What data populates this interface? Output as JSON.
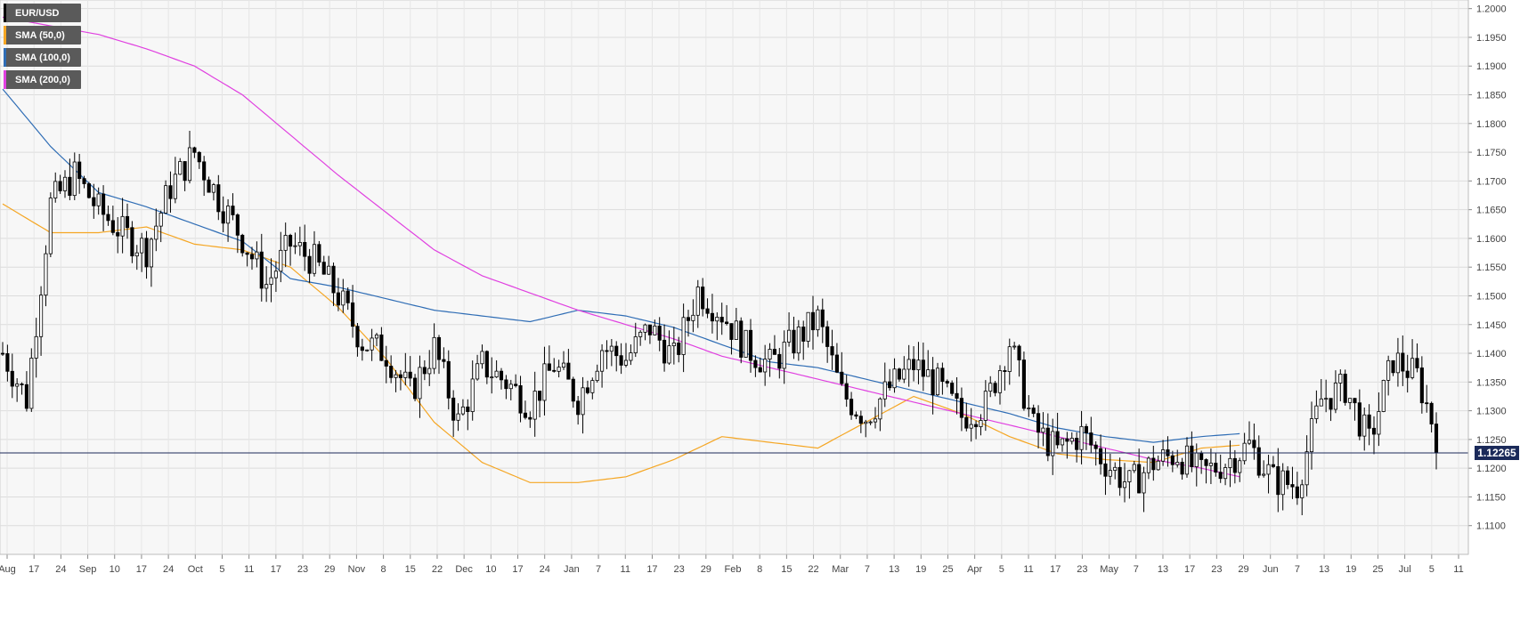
{
  "legend": [
    {
      "label": "EUR/USD",
      "color": "#000000"
    },
    {
      "label": "SMA (50,0)",
      "color": "#f5a623"
    },
    {
      "label": "SMA (100,0)",
      "color": "#2f6db5"
    },
    {
      "label": "SMA (200,0)",
      "color": "#e040e0"
    }
  ],
  "last_price_label": "1.12265",
  "chart_data": {
    "type": "candlestick",
    "title": "",
    "symbol": "EUR/USD",
    "ylim": [
      1.105,
      1.2015
    ],
    "y_ticks": [
      "1.1100",
      "1.1150",
      "1.1200",
      "1.1250",
      "1.1300",
      "1.1350",
      "1.1400",
      "1.1450",
      "1.1500",
      "1.1550",
      "1.1600",
      "1.1650",
      "1.1700",
      "1.1750",
      "1.1800",
      "1.1850",
      "1.1900",
      "1.1950",
      "1.2000"
    ],
    "x_ticks": [
      "Aug",
      "17",
      "24",
      "Sep",
      "10",
      "17",
      "24",
      "Oct",
      "5",
      "11",
      "17",
      "23",
      "29",
      "Nov",
      "8",
      "15",
      "22",
      "Dec",
      "10",
      "17",
      "24",
      "Jan",
      "7",
      "11",
      "17",
      "23",
      "29",
      "Feb",
      "8",
      "15",
      "22",
      "Mar",
      "7",
      "13",
      "19",
      "25",
      "Apr",
      "5",
      "11",
      "17",
      "23",
      "May",
      "7",
      "13",
      "17",
      "23",
      "29",
      "Jun",
      "7",
      "13",
      "19",
      "25",
      "Jul",
      "5",
      "11"
    ],
    "last_price": 1.12265,
    "grid": true,
    "sma_waypoints": {
      "SMA (50,0)": [
        [
          0,
          1.166
        ],
        [
          10,
          1.161
        ],
        [
          20,
          1.161
        ],
        [
          30,
          1.162
        ],
        [
          40,
          1.159
        ],
        [
          50,
          1.158
        ],
        [
          60,
          1.155
        ],
        [
          70,
          1.148
        ],
        [
          80,
          1.139
        ],
        [
          90,
          1.128
        ],
        [
          100,
          1.121
        ],
        [
          110,
          1.1175
        ],
        [
          120,
          1.1175
        ],
        [
          130,
          1.1185
        ],
        [
          140,
          1.1215
        ],
        [
          150,
          1.1255
        ],
        [
          160,
          1.1245
        ],
        [
          170,
          1.1235
        ],
        [
          180,
          1.128
        ],
        [
          190,
          1.1325
        ],
        [
          200,
          1.1295
        ],
        [
          210,
          1.1255
        ],
        [
          220,
          1.1225
        ],
        [
          230,
          1.1215
        ],
        [
          240,
          1.121
        ],
        [
          250,
          1.1235
        ],
        [
          258,
          1.124
        ]
      ],
      "SMA (100,0)": [
        [
          0,
          1.186
        ],
        [
          10,
          1.176
        ],
        [
          20,
          1.168
        ],
        [
          30,
          1.1655
        ],
        [
          40,
          1.1625
        ],
        [
          50,
          1.1595
        ],
        [
          60,
          1.153
        ],
        [
          70,
          1.1515
        ],
        [
          80,
          1.1495
        ],
        [
          90,
          1.1475
        ],
        [
          100,
          1.1465
        ],
        [
          110,
          1.1455
        ],
        [
          120,
          1.1475
        ],
        [
          130,
          1.1465
        ],
        [
          140,
          1.1445
        ],
        [
          150,
          1.1415
        ],
        [
          160,
          1.1385
        ],
        [
          170,
          1.1375
        ],
        [
          180,
          1.1355
        ],
        [
          190,
          1.1335
        ],
        [
          200,
          1.1315
        ],
        [
          210,
          1.1295
        ],
        [
          220,
          1.127
        ],
        [
          230,
          1.1255
        ],
        [
          240,
          1.1245
        ],
        [
          250,
          1.1255
        ],
        [
          258,
          1.126
        ]
      ],
      "SMA (200,0)": [
        [
          0,
          1.1985
        ],
        [
          10,
          1.197
        ],
        [
          20,
          1.1955
        ],
        [
          30,
          1.193
        ],
        [
          40,
          1.19
        ],
        [
          50,
          1.185
        ],
        [
          60,
          1.178
        ],
        [
          70,
          1.171
        ],
        [
          80,
          1.1645
        ],
        [
          90,
          1.158
        ],
        [
          100,
          1.1535
        ],
        [
          110,
          1.1505
        ],
        [
          120,
          1.1475
        ],
        [
          130,
          1.145
        ],
        [
          140,
          1.1425
        ],
        [
          150,
          1.1395
        ],
        [
          160,
          1.1375
        ],
        [
          170,
          1.1355
        ],
        [
          180,
          1.1335
        ],
        [
          190,
          1.1315
        ],
        [
          200,
          1.1295
        ],
        [
          210,
          1.1275
        ],
        [
          220,
          1.1255
        ],
        [
          230,
          1.1235
        ],
        [
          240,
          1.1215
        ],
        [
          250,
          1.12
        ],
        [
          258,
          1.1185
        ]
      ]
    },
    "price_waypoints": [
      [
        0,
        1.14
      ],
      [
        5,
        1.132
      ],
      [
        10,
        1.166
      ],
      [
        15,
        1.171
      ],
      [
        20,
        1.165
      ],
      [
        25,
        1.161
      ],
      [
        30,
        1.158
      ],
      [
        35,
        1.169
      ],
      [
        40,
        1.175
      ],
      [
        45,
        1.167
      ],
      [
        50,
        1.16
      ],
      [
        55,
        1.152
      ],
      [
        60,
        1.159
      ],
      [
        65,
        1.156
      ],
      [
        70,
        1.15
      ],
      [
        75,
        1.142
      ],
      [
        80,
        1.14
      ],
      [
        85,
        1.133
      ],
      [
        90,
        1.141
      ],
      [
        95,
        1.128
      ],
      [
        100,
        1.138
      ],
      [
        105,
        1.135
      ],
      [
        110,
        1.131
      ],
      [
        115,
        1.138
      ],
      [
        120,
        1.132
      ],
      [
        125,
        1.141
      ],
      [
        130,
        1.139
      ],
      [
        135,
        1.1445
      ],
      [
        140,
        1.139
      ],
      [
        145,
        1.151
      ],
      [
        150,
        1.147
      ],
      [
        155,
        1.141
      ],
      [
        160,
        1.138
      ],
      [
        165,
        1.142
      ],
      [
        170,
        1.146
      ],
      [
        175,
        1.133
      ],
      [
        180,
        1.129
      ],
      [
        185,
        1.134
      ],
      [
        190,
        1.138
      ],
      [
        195,
        1.1345
      ],
      [
        200,
        1.129
      ],
      [
        205,
        1.131
      ],
      [
        210,
        1.142
      ],
      [
        215,
        1.127
      ],
      [
        220,
        1.123
      ],
      [
        225,
        1.126
      ],
      [
        230,
        1.121
      ],
      [
        235,
        1.117
      ],
      [
        240,
        1.121
      ],
      [
        245,
        1.1225
      ],
      [
        250,
        1.119
      ],
      [
        255,
        1.121
      ],
      [
        260,
        1.124
      ],
      [
        265,
        1.118
      ],
      [
        270,
        1.117
      ],
      [
        275,
        1.132
      ],
      [
        280,
        1.134
      ],
      [
        285,
        1.1245
      ],
      [
        290,
        1.139
      ],
      [
        295,
        1.136
      ],
      [
        298,
        1.1285
      ],
      [
        300,
        1.12265
      ]
    ],
    "candle_count": 300
  }
}
